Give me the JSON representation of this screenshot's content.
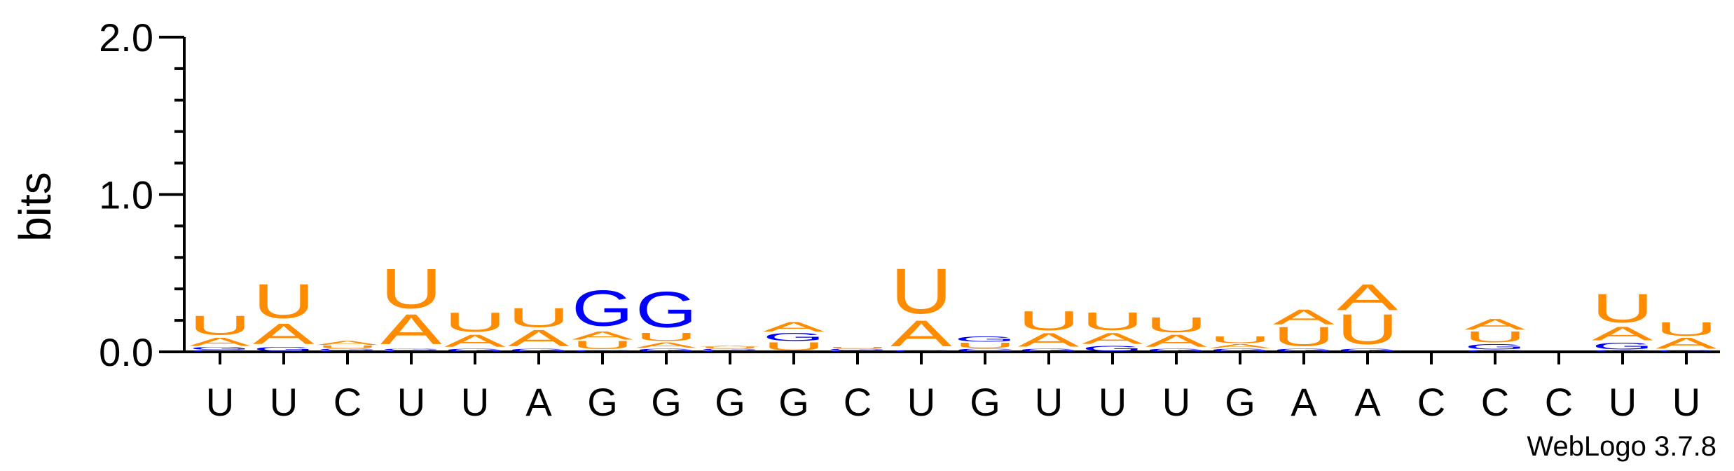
{
  "chart_data": {
    "type": "sequence-logo",
    "ylabel": "bits",
    "ylim": [
      0,
      2.0
    ],
    "yticks": [
      {
        "value": 0,
        "label": "0.0"
      },
      {
        "value": 1,
        "label": "1.0"
      },
      {
        "value": 2,
        "label": "2.0"
      }
    ],
    "ytick_step_minor": 0.2,
    "colors": {
      "A": "#ff8c00",
      "U": "#ff8c00",
      "G": "#0000ff",
      "C": "#0000ff"
    },
    "xticks": [
      "U",
      "U",
      "C",
      "U",
      "U",
      "A",
      "G",
      "G",
      "G",
      "G",
      "C",
      "U",
      "G",
      "U",
      "U",
      "U",
      "G",
      "A",
      "A",
      "C",
      "C",
      "C",
      "U",
      "U"
    ],
    "positions": [
      {
        "stack": [
          {
            "letter": "C",
            "height": 0.01
          },
          {
            "letter": "G",
            "height": 0.02
          },
          {
            "letter": "A",
            "height": 0.06
          },
          {
            "letter": "U",
            "height": 0.14
          }
        ]
      },
      {
        "stack": [
          {
            "letter": "G",
            "height": 0.03
          },
          {
            "letter": "A",
            "height": 0.15
          },
          {
            "letter": "U",
            "height": 0.25
          }
        ]
      },
      {
        "stack": [
          {
            "letter": "C",
            "height": 0.01
          },
          {
            "letter": "G",
            "height": 0.01
          },
          {
            "letter": "U",
            "height": 0.02
          },
          {
            "letter": "A",
            "height": 0.03
          }
        ]
      },
      {
        "stack": [
          {
            "letter": "C",
            "height": 0.01
          },
          {
            "letter": "G",
            "height": 0.01
          },
          {
            "letter": "A",
            "height": 0.22
          },
          {
            "letter": "U",
            "height": 0.29
          }
        ]
      },
      {
        "stack": [
          {
            "letter": "G",
            "height": 0.02
          },
          {
            "letter": "A",
            "height": 0.09
          },
          {
            "letter": "U",
            "height": 0.14
          }
        ]
      },
      {
        "stack": [
          {
            "letter": "G",
            "height": 0.02
          },
          {
            "letter": "A",
            "height": 0.12
          },
          {
            "letter": "U",
            "height": 0.14
          }
        ]
      },
      {
        "stack": [
          {
            "letter": "C",
            "height": 0.01
          },
          {
            "letter": "U",
            "height": 0.06
          },
          {
            "letter": "A",
            "height": 0.06
          },
          {
            "letter": "G",
            "height": 0.26
          }
        ]
      },
      {
        "stack": [
          {
            "letter": "G",
            "height": 0.02
          },
          {
            "letter": "A",
            "height": 0.04
          },
          {
            "letter": "U",
            "height": 0.06
          },
          {
            "letter": "G",
            "height": 0.26
          }
        ]
      },
      {
        "stack": [
          {
            "letter": "C",
            "height": 0.01
          },
          {
            "letter": "G",
            "height": 0.01
          },
          {
            "letter": "U",
            "height": 0.01
          },
          {
            "letter": "A",
            "height": 0.01
          }
        ]
      },
      {
        "stack": [
          {
            "letter": "U",
            "height": 0.06
          },
          {
            "letter": "G",
            "height": 0.06
          },
          {
            "letter": "A",
            "height": 0.07
          }
        ]
      },
      {
        "stack": [
          {
            "letter": "C",
            "height": 0.01
          },
          {
            "letter": "G",
            "height": 0.01
          },
          {
            "letter": "U",
            "height": 0.01
          }
        ]
      },
      {
        "stack": [
          {
            "letter": "C",
            "height": 0.01
          },
          {
            "letter": "A",
            "height": 0.19
          },
          {
            "letter": "U",
            "height": 0.33
          }
        ]
      },
      {
        "stack": [
          {
            "letter": "C",
            "height": 0.02
          },
          {
            "letter": "U",
            "height": 0.04
          },
          {
            "letter": "G",
            "height": 0.04
          }
        ]
      },
      {
        "stack": [
          {
            "letter": "G",
            "height": 0.02
          },
          {
            "letter": "A",
            "height": 0.1
          },
          {
            "letter": "U",
            "height": 0.14
          }
        ]
      },
      {
        "stack": [
          {
            "letter": "G",
            "height": 0.04
          },
          {
            "letter": "A",
            "height": 0.08
          },
          {
            "letter": "U",
            "height": 0.13
          }
        ]
      },
      {
        "stack": [
          {
            "letter": "G",
            "height": 0.02
          },
          {
            "letter": "A",
            "height": 0.09
          },
          {
            "letter": "U",
            "height": 0.11
          }
        ]
      },
      {
        "stack": [
          {
            "letter": "G",
            "height": 0.02
          },
          {
            "letter": "A",
            "height": 0.03
          },
          {
            "letter": "U",
            "height": 0.05
          }
        ]
      },
      {
        "stack": [
          {
            "letter": "G",
            "height": 0.02
          },
          {
            "letter": "U",
            "height": 0.14
          },
          {
            "letter": "A",
            "height": 0.11
          }
        ]
      },
      {
        "stack": [
          {
            "letter": "G",
            "height": 0.02
          },
          {
            "letter": "U",
            "height": 0.22
          },
          {
            "letter": "A",
            "height": 0.19
          }
        ]
      },
      {
        "stack": []
      },
      {
        "stack": [
          {
            "letter": "C",
            "height": 0.01
          },
          {
            "letter": "G",
            "height": 0.04
          },
          {
            "letter": "U",
            "height": 0.08
          },
          {
            "letter": "A",
            "height": 0.08
          }
        ]
      },
      {
        "stack": []
      },
      {
        "stack": [
          {
            "letter": "C",
            "height": 0.01
          },
          {
            "letter": "G",
            "height": 0.05
          },
          {
            "letter": "A",
            "height": 0.1
          },
          {
            "letter": "U",
            "height": 0.21
          }
        ]
      },
      {
        "stack": [
          {
            "letter": "G",
            "height": 0.01
          },
          {
            "letter": "A",
            "height": 0.08
          },
          {
            "letter": "U",
            "height": 0.1
          }
        ]
      }
    ],
    "credit": "WebLogo 3.7.8"
  }
}
